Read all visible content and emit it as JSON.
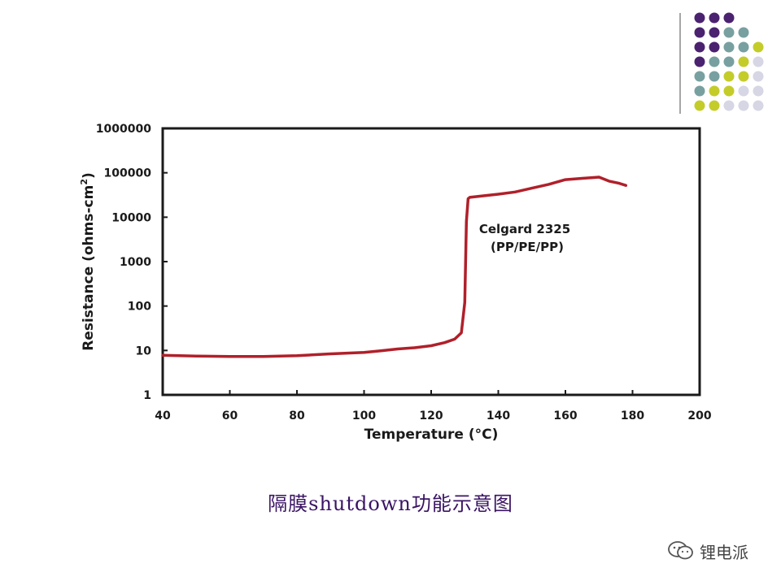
{
  "chart_data": {
    "type": "line",
    "xlabel": "Temperature (°C)",
    "ylabel": "Resistance (ohms-cm²)",
    "ylabel_main": "Resistance (ohms-cm",
    "ylabel_sup": "2",
    "ylabel_end": ")",
    "yscale": "log",
    "xlim": [
      40,
      200
    ],
    "ylim": [
      1,
      1000000
    ],
    "x_ticks": [
      40,
      60,
      80,
      100,
      120,
      140,
      160,
      180,
      200
    ],
    "x_tick_labels": [
      "40",
      "60",
      "80",
      "100",
      "120",
      "140",
      "160",
      "180",
      "200"
    ],
    "y_ticks": [
      1,
      10,
      100,
      1000,
      10000,
      100000,
      1000000
    ],
    "y_tick_labels": [
      "1",
      "10",
      "100",
      "1000",
      "10000",
      "100000",
      "1000000"
    ],
    "grid": false,
    "line_color": "#b0202a",
    "annotation": [
      "Celgard 2325",
      "(PP/PE/PP)"
    ],
    "series": [
      {
        "x": [
          40,
          50,
          60,
          70,
          80,
          90,
          100,
          105,
          110,
          115,
          120,
          124,
          127,
          129,
          130,
          130.5,
          131,
          131.5,
          135,
          140,
          145,
          150,
          155,
          160,
          165,
          168,
          170,
          173,
          176,
          178
        ],
        "y": [
          7.8,
          7.5,
          7.3,
          7.3,
          7.6,
          8.4,
          9.0,
          9.8,
          10.8,
          11.5,
          12.8,
          15,
          18,
          25,
          120,
          8000,
          26000,
          28000,
          30000,
          33000,
          37000,
          45000,
          55000,
          70000,
          75000,
          78000,
          80000,
          65000,
          58000,
          52000
        ]
      }
    ]
  },
  "caption": "隔膜shutdown功能示意图",
  "watermark": {
    "text": "锂电派",
    "icon": "wechat-icon"
  },
  "decoration": {
    "colors": [
      "#4b2270",
      "#78a0a0",
      "#c4cc2a",
      "#d6d6e4"
    ]
  }
}
